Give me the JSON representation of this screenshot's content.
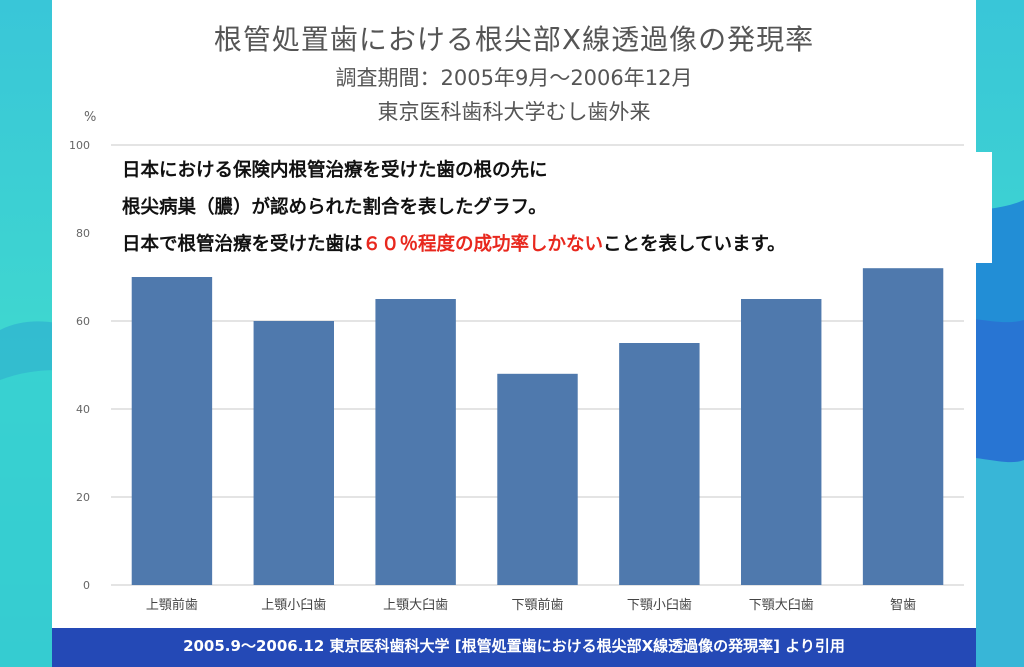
{
  "colors": {
    "bar": "#4f79ad",
    "grid": "#c8c8c8",
    "highlight": "#e8281e",
    "footer_bg": "#2449b6"
  },
  "chart_data": {
    "type": "bar",
    "title": "根管処置歯における根尖部X線透過像の発現率",
    "subtitle_1": "調査期間：2005年9月～2006年12月",
    "subtitle_2": "東京医科歯科大学むし歯外来",
    "y_unit": "%",
    "ylim": [
      0,
      100
    ],
    "yticks": [
      0,
      20,
      40,
      60,
      80,
      100
    ],
    "grid": true,
    "categories": [
      "上顎前歯",
      "上顎小臼歯",
      "上顎大臼歯",
      "下顎前歯",
      "下顎小臼歯",
      "下顎大臼歯",
      "智歯"
    ],
    "values": [
      70,
      60,
      65,
      48,
      55,
      65,
      72
    ]
  },
  "note": {
    "line1": "日本における保険内根管治療を受けた歯の根の先に",
    "line2": "根尖病巣（膿）が認められた割合を表したグラフ。",
    "line3_pre": "日本で根管治療を受けた歯は",
    "line3_highlight": "６０％程度の成功率しかない",
    "line3_post": "ことを表しています。"
  },
  "footer": {
    "text": "2005.9〜2006.12 東京医科歯科大学 [根管処置歯における根尖部X線透過像の発現率] より引用"
  }
}
